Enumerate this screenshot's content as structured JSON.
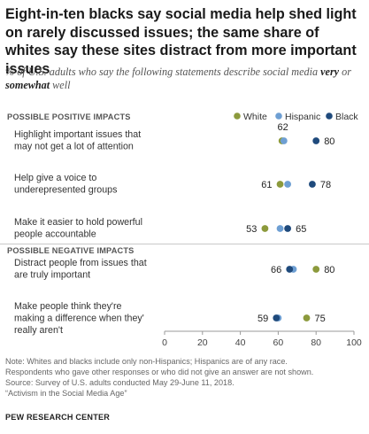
{
  "title": "Eight-in-ten blacks say social media help shed light on rarely discussed issues; the same share of whites say these sites distract from more important issues",
  "subtitle_prefix": "% of U.S. adults who say the following statements describe social media",
  "subtitle_very": "very",
  "subtitle_or": "or",
  "subtitle_somewhat": "somewhat",
  "subtitle_well": "well",
  "notes": [
    "Note: Whites and blacks include only non-Hispanics; Hispanics are of any race.",
    "Respondents who gave other responses or who did not give an answer are not shown.",
    "Source: Survey of U.S. adults conducted May 29-June 11, 2018.",
    "“Activism in the Social Media Age”"
  ],
  "source_org": "PEW RESEARCH CENTER",
  "chart_data": {
    "type": "scatter",
    "title": "",
    "xlim": [
      0,
      100
    ],
    "xticks": [
      0,
      20,
      40,
      60,
      80,
      100
    ],
    "legend_position": "top-right",
    "series": [
      {
        "name": "White",
        "color": "#8c9a3c"
      },
      {
        "name": "Hispanic",
        "color": "#6e9fd3"
      },
      {
        "name": "Black",
        "color": "#1f4a7c"
      }
    ],
    "sections": [
      {
        "label": "POSSIBLE POSITIVE IMPACTS",
        "items": [
          {
            "lines": [
              "Highlight important issues that",
              "may not get a lot of attention"
            ],
            "values": [
              62,
              63,
              80
            ],
            "labels": [
              "62",
              "",
              "80"
            ],
            "label_style": "above-left"
          },
          {
            "lines": [
              "Help give a voice to",
              "underepresented groups"
            ],
            "values": [
              61,
              65,
              78
            ],
            "labels": [
              "61",
              "",
              "78"
            ],
            "label_style": "sides"
          },
          {
            "lines": [
              "Make it easier to hold powerful",
              "people accountable"
            ],
            "values": [
              53,
              61,
              65
            ],
            "labels": [
              "53",
              "",
              "65"
            ],
            "label_style": "sides"
          }
        ]
      },
      {
        "label": "POSSIBLE NEGATIVE IMPACTS",
        "items": [
          {
            "lines": [
              "Distract people from issues that",
              "are truly important"
            ],
            "values": [
              80,
              68,
              66
            ],
            "labels": [
              "80",
              "",
              "66"
            ],
            "label_style": "sides"
          },
          {
            "lines": [
              "Make people  think they're",
              "making a difference when they'",
              "really aren't"
            ],
            "values": [
              75,
              60,
              59
            ],
            "labels": [
              "75",
              "",
              "59"
            ],
            "label_style": "sides"
          }
        ]
      }
    ]
  }
}
